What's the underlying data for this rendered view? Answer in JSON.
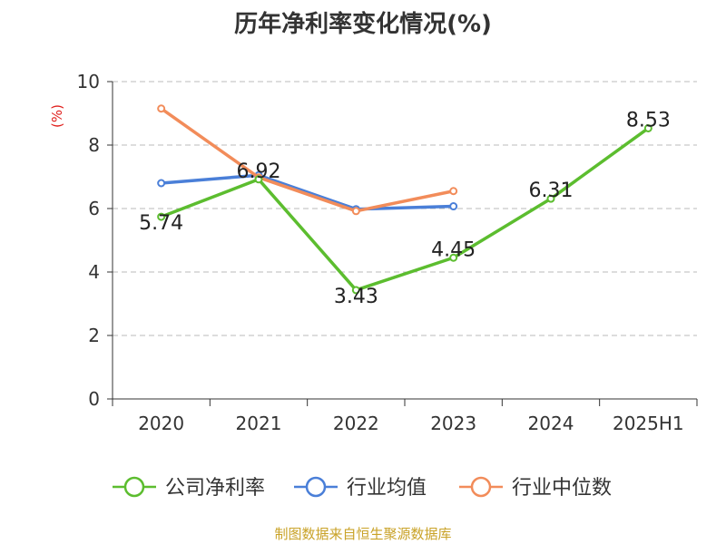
{
  "chart_data": {
    "type": "line",
    "title": "历年净利率变化情况(%)",
    "ylabel": "(%)",
    "xlabel": "",
    "categories": [
      "2020",
      "2021",
      "2022",
      "2023",
      "2024",
      "2025H1"
    ],
    "ylim": [
      0,
      10
    ],
    "yticks": [
      0,
      2,
      4,
      6,
      8,
      10
    ],
    "grid": "horizontal dashed",
    "legend_position": "bottom",
    "series": [
      {
        "name": "公司净利率",
        "color": "#5cbd2f",
        "values": [
          5.74,
          6.92,
          3.43,
          4.45,
          6.31,
          8.53
        ],
        "labels": [
          "5.74",
          "6.92",
          "3.43",
          "4.45",
          "6.31",
          "8.53"
        ]
      },
      {
        "name": "行业均值",
        "color": "#4a7fd8",
        "values": [
          6.8,
          7.05,
          5.98,
          6.07,
          null,
          null
        ]
      },
      {
        "name": "行业中位数",
        "color": "#f28c5a",
        "values": [
          9.15,
          6.98,
          5.92,
          6.55,
          null,
          null
        ]
      }
    ]
  },
  "footer": {
    "source": "制图数据来自恒生聚源数据库"
  }
}
